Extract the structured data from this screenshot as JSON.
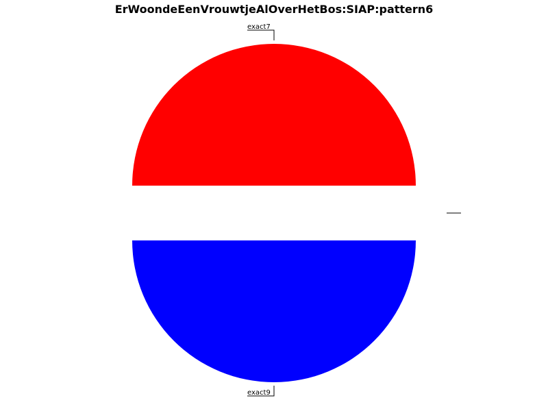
{
  "chart_data": {
    "type": "pie",
    "title": "ErWoondeEenVrouwtjeAlOverHetBos:SIAP:pattern6",
    "slices": [
      {
        "label": "exact7",
        "share": 0.5,
        "color": "#ff0000"
      },
      {
        "label": "",
        "share": 0.0,
        "color": "#ffffff"
      },
      {
        "label": "exact9",
        "share": 0.5,
        "color": "#0000ff"
      }
    ]
  }
}
